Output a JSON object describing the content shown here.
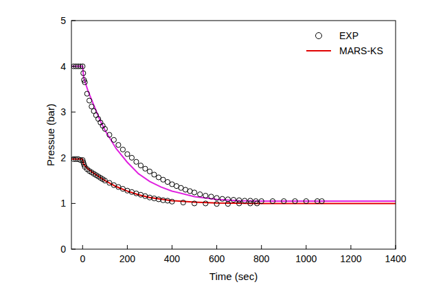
{
  "chart_data": {
    "type": "line",
    "x_label": "Time (sec)",
    "y_label": "Pressue (bar)",
    "xlim": [
      -50,
      1400
    ],
    "ylim": [
      0,
      5
    ],
    "xticks": [
      0,
      200,
      400,
      600,
      800,
      1000,
      1200,
      1400
    ],
    "yticks": [
      0,
      1,
      2,
      3,
      4,
      5
    ],
    "grid": false,
    "legend": "upper right",
    "series": [
      {
        "name": "EXP",
        "type": "scatter",
        "marker": "circle",
        "color": "#000000",
        "x": [
          -40,
          -30,
          -20,
          -10,
          0,
          3,
          6,
          10,
          20,
          30,
          40,
          50,
          60,
          70,
          80,
          90,
          100,
          120,
          140,
          160,
          180,
          200,
          220,
          240,
          260,
          280,
          300,
          320,
          340,
          360,
          380,
          400,
          420,
          440,
          460,
          480,
          500,
          525,
          550,
          575,
          600,
          625,
          650,
          675,
          700,
          725,
          750,
          775,
          800,
          850,
          900,
          950,
          1000,
          1050,
          1070
        ],
        "values": [
          4,
          4,
          4,
          4,
          4,
          3.85,
          3.7,
          3.65,
          3.4,
          3.25,
          3.12,
          3.02,
          2.93,
          2.85,
          2.77,
          2.7,
          2.63,
          2.5,
          2.39,
          2.28,
          2.18,
          2.08,
          2.0,
          1.91,
          1.83,
          1.76,
          1.7,
          1.63,
          1.57,
          1.52,
          1.47,
          1.42,
          1.38,
          1.34,
          1.3,
          1.27,
          1.24,
          1.2,
          1.17,
          1.15,
          1.12,
          1.1,
          1.09,
          1.08,
          1.07,
          1.06,
          1.06,
          1.05,
          1.05,
          1.05,
          1.05,
          1.05,
          1.05,
          1.05,
          1.05
        ]
      },
      {
        "type": "scatter",
        "marker": "circle",
        "color": "#000000",
        "x": [
          -40,
          -30,
          -20,
          -10,
          0,
          3,
          6,
          10,
          20,
          30,
          40,
          50,
          60,
          70,
          80,
          90,
          100,
          120,
          140,
          160,
          180,
          200,
          220,
          240,
          260,
          280,
          300,
          320,
          340,
          360,
          380,
          400,
          450,
          500,
          550,
          600,
          650,
          700,
          750,
          780
        ],
        "values": [
          1.97,
          1.97,
          1.97,
          1.95,
          1.95,
          1.9,
          1.85,
          1.8,
          1.75,
          1.71,
          1.68,
          1.65,
          1.62,
          1.59,
          1.56,
          1.53,
          1.5,
          1.45,
          1.4,
          1.36,
          1.32,
          1.28,
          1.25,
          1.22,
          1.19,
          1.16,
          1.13,
          1.11,
          1.09,
          1.07,
          1.06,
          1.04,
          1.02,
          1.0,
          1.0,
          0.99,
          0.99,
          1.0,
          1.0,
          1.0
        ]
      },
      {
        "name": "MARS-KS",
        "type": "line",
        "line_style": "solid",
        "color": "#e00000",
        "x": [
          -50,
          0,
          5,
          25,
          50,
          100,
          150,
          200,
          250,
          300,
          400,
          500,
          600,
          800,
          1000,
          1400
        ],
        "values": [
          1.97,
          1.97,
          1.85,
          1.75,
          1.66,
          1.5,
          1.37,
          1.27,
          1.19,
          1.13,
          1.06,
          1.03,
          1.01,
          1.0,
          1.0,
          1.0
        ]
      },
      {
        "type": "line",
        "line_style": "solid",
        "color": "#e020e0",
        "x": [
          -50,
          0,
          5,
          25,
          50,
          75,
          100,
          150,
          200,
          250,
          300,
          350,
          400,
          500,
          600,
          700,
          800,
          1000,
          1400
        ],
        "values": [
          4,
          4,
          3.75,
          3.45,
          3.15,
          2.85,
          2.6,
          2.2,
          1.9,
          1.65,
          1.48,
          1.36,
          1.27,
          1.15,
          1.09,
          1.06,
          1.05,
          1.05,
          1.05
        ]
      }
    ]
  }
}
